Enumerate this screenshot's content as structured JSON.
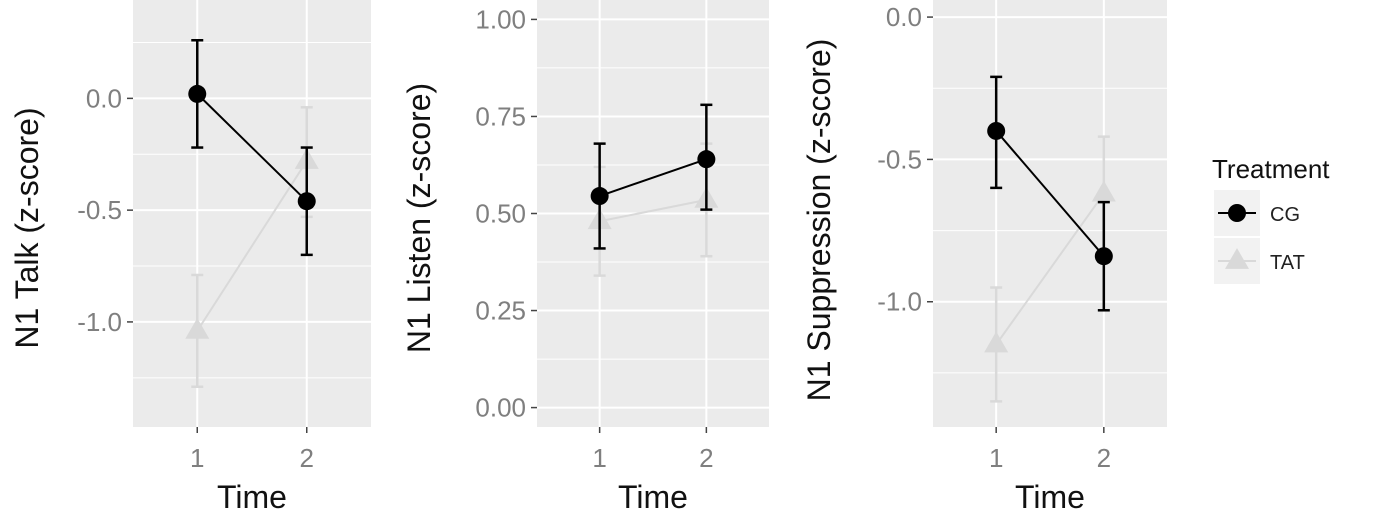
{
  "chart_data": [
    {
      "type": "line",
      "ylabel": "N1 Talk (z-score)",
      "xlabel": "Time",
      "x": [
        1,
        2
      ],
      "x_ticks": [
        "1",
        "2"
      ],
      "ylim": [
        -1.47,
        0.44
      ],
      "y_ticks": [
        "0.0",
        "-0.5",
        "-1.0"
      ],
      "y_tick_values": [
        0.0,
        -0.5,
        -1.0
      ],
      "grid": true,
      "series": [
        {
          "name": "CG",
          "values": [
            0.02,
            -0.46
          ],
          "err_low": [
            -0.22,
            -0.7
          ],
          "err_high": [
            0.26,
            -0.22
          ]
        },
        {
          "name": "TAT",
          "values": [
            -1.04,
            -0.28
          ],
          "err_low": [
            -1.29,
            -0.53
          ],
          "err_high": [
            -0.79,
            -0.04
          ]
        }
      ]
    },
    {
      "type": "line",
      "ylabel": "N1 Listen (z-score)",
      "xlabel": "Time",
      "x": [
        1,
        2
      ],
      "x_ticks": [
        "1",
        "2"
      ],
      "ylim": [
        -0.05,
        1.05
      ],
      "y_ticks": [
        "1.00",
        "0.75",
        "0.50",
        "0.25",
        "0.00"
      ],
      "y_tick_values": [
        1.0,
        0.75,
        0.5,
        0.25,
        0.0
      ],
      "grid": true,
      "series": [
        {
          "name": "CG",
          "values": [
            0.545,
            0.64
          ],
          "err_low": [
            0.41,
            0.51
          ],
          "err_high": [
            0.68,
            0.78
          ]
        },
        {
          "name": "TAT",
          "values": [
            0.48,
            0.535
          ],
          "err_low": [
            0.34,
            0.39
          ],
          "err_high": [
            0.62,
            0.68
          ]
        }
      ]
    },
    {
      "type": "line",
      "ylabel": "N1 Suppression (z-score)",
      "xlabel": "Time",
      "x": [
        1,
        2
      ],
      "x_ticks": [
        "1",
        "2"
      ],
      "ylim": [
        -1.44,
        0.06
      ],
      "y_ticks": [
        "0.0",
        "-0.5",
        "-1.0"
      ],
      "y_tick_values": [
        0.0,
        -0.5,
        -1.0
      ],
      "grid": true,
      "series": [
        {
          "name": "CG",
          "values": [
            -0.4,
            -0.84
          ],
          "err_low": [
            -0.6,
            -1.03
          ],
          "err_high": [
            -0.21,
            -0.65
          ]
        },
        {
          "name": "TAT",
          "values": [
            -1.15,
            -0.62
          ],
          "err_low": [
            -1.35,
            -0.82
          ],
          "err_high": [
            -0.95,
            -0.42
          ]
        }
      ]
    }
  ],
  "legend": {
    "title": "Treatment",
    "position": "right",
    "entries": [
      {
        "label": "CG",
        "color": "#000000",
        "shape": "circle"
      },
      {
        "label": "TAT",
        "color": "#d9d9d9",
        "shape": "triangle"
      }
    ]
  },
  "colors": {
    "panel_background": "#ebebeb",
    "grid": "#ffffff",
    "CG": "#000000",
    "TAT": "#d9d9d9"
  }
}
